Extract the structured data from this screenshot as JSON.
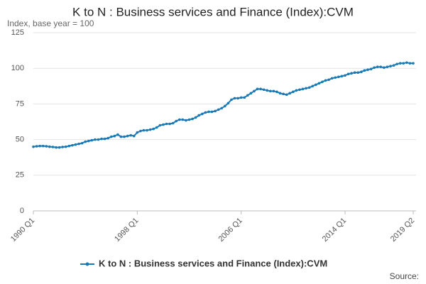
{
  "chart_data": {
    "type": "line",
    "title": "K to N : Business services and Finance (Index):CVM",
    "subtitle": "Index, base year = 100",
    "source": "Source:",
    "categories": [
      "1990 Q1",
      null,
      null,
      null,
      null,
      null,
      null,
      null,
      null,
      null,
      null,
      null,
      null,
      null,
      null,
      null,
      null,
      null,
      null,
      null,
      null,
      null,
      null,
      null,
      null,
      null,
      null,
      null,
      null,
      null,
      null,
      null,
      "1998 Q1",
      null,
      null,
      null,
      null,
      null,
      null,
      null,
      null,
      null,
      null,
      null,
      null,
      null,
      null,
      null,
      null,
      null,
      null,
      null,
      null,
      null,
      null,
      null,
      null,
      null,
      null,
      null,
      null,
      null,
      null,
      null,
      "2006 Q1",
      null,
      null,
      null,
      null,
      null,
      null,
      null,
      null,
      null,
      null,
      null,
      null,
      null,
      null,
      null,
      null,
      null,
      null,
      null,
      null,
      null,
      null,
      null,
      null,
      null,
      null,
      null,
      null,
      null,
      null,
      null,
      "2014 Q1",
      null,
      null,
      null,
      null,
      null,
      null,
      null,
      null,
      null,
      null,
      null,
      null,
      null,
      null,
      null,
      null,
      null,
      null,
      null,
      null,
      "2019 Q2"
    ],
    "series": [
      {
        "name": "K to N : Business services and Finance (Index):CVM",
        "color": "#1a7ab5",
        "values": [
          45,
          45.3,
          45.5,
          45.5,
          45.3,
          45,
          44.8,
          44.5,
          44.5,
          44.8,
          45,
          45.5,
          46,
          46.5,
          47,
          47.5,
          48.5,
          49,
          49.5,
          50,
          50,
          50.5,
          50.5,
          51,
          52,
          52.5,
          53.5,
          52,
          52,
          52.5,
          53,
          52.5,
          55,
          56,
          56.5,
          56.5,
          57,
          57.5,
          58.5,
          60,
          60.5,
          61,
          61,
          61.5,
          63,
          64,
          64,
          63.5,
          64,
          64.5,
          65.5,
          67,
          68,
          69,
          69.5,
          69.5,
          70,
          71,
          72,
          73.5,
          75.5,
          78,
          79,
          79,
          79.5,
          79.5,
          81,
          82.5,
          84,
          85.5,
          85.5,
          85,
          84.5,
          84,
          84,
          83.5,
          82.5,
          82,
          81.5,
          82.5,
          83.5,
          84.5,
          85,
          85.5,
          86,
          86.5,
          87.5,
          88.5,
          89.5,
          90.5,
          91.5,
          92,
          93,
          93.5,
          94,
          94.5,
          95,
          96,
          96.5,
          97,
          97,
          97.5,
          98.5,
          99,
          99.5,
          100.5,
          101,
          101,
          100.5,
          101,
          101.5,
          102,
          103,
          103.5,
          103.5,
          104,
          103.5,
          103.5
        ]
      }
    ],
    "ylim": [
      0,
      125
    ],
    "yticks": [
      0,
      25,
      50,
      75,
      100,
      125
    ],
    "grid": true
  }
}
